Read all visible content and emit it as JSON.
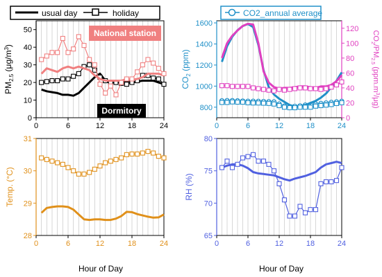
{
  "figure": {
    "shared_xlabel": "Hour of Day"
  },
  "colors": {
    "black": "#000000",
    "pink": "#f08080",
    "orange": "#e0901a",
    "blue": "#2090c8",
    "magenta": "#e040c0",
    "purple": "#5060e0",
    "grid": "#bdbdbd",
    "dormitory_box": "#000000",
    "national_box": "#f08080"
  },
  "chart_data": [
    {
      "type": "line",
      "panel": "pm25",
      "ylabel": "PM2.5 (μg/m3)",
      "ylim": [
        0,
        55
      ],
      "xlim": [
        0,
        24
      ],
      "xticks": [
        0,
        6,
        12,
        18,
        24
      ],
      "yticks": [
        0,
        10,
        20,
        30,
        40,
        50
      ],
      "grid": "vertical",
      "legend": {
        "position": "top",
        "entries": [
          "usual day",
          "holiday"
        ]
      },
      "annotations": [
        "National station",
        "Dormitory"
      ],
      "x": [
        1,
        2,
        3,
        4,
        5,
        6,
        7,
        8,
        9,
        10,
        11,
        12,
        13,
        14,
        15,
        16,
        17,
        18,
        19,
        20,
        21,
        22,
        23,
        24
      ],
      "series": [
        {
          "name": "usual day",
          "color": "#000000",
          "style": "thick-line",
          "values": [
            16,
            15,
            14.5,
            14,
            13,
            13,
            12.5,
            14,
            17,
            20,
            23,
            25,
            21,
            20,
            20,
            20,
            21,
            20,
            20.5,
            21,
            21,
            21,
            20,
            19
          ]
        },
        {
          "name": "holiday",
          "color": "#000000",
          "style": "line-open-square",
          "values": [
            20,
            20.5,
            21,
            21,
            22,
            22,
            23.5,
            25,
            29,
            30,
            27,
            23,
            21,
            20,
            20,
            19.5,
            19,
            20,
            21,
            24,
            24,
            22.5,
            22,
            19
          ]
        },
        {
          "name": "National station usual day",
          "color": "#f08080",
          "style": "thick-line",
          "values": [
            25,
            28,
            27,
            26,
            28,
            29,
            28,
            29,
            28,
            27,
            24,
            22,
            21,
            21,
            21,
            21,
            22,
            21.5,
            22,
            23,
            25,
            25,
            25,
            24
          ]
        },
        {
          "name": "National station holiday",
          "color": "#f08080",
          "style": "line-open-square",
          "values": [
            33,
            35,
            37,
            37,
            45,
            37,
            39,
            46,
            41,
            33,
            30,
            19,
            14,
            18,
            13,
            20,
            22,
            22,
            26,
            30,
            33,
            31,
            28,
            25
          ]
        }
      ]
    },
    {
      "type": "line",
      "panel": "co2",
      "ylabel": "CO2 (ppm)",
      "y2label": "CO2/PM2.5 (ppm.m3/μg)",
      "ylim": [
        700,
        1620
      ],
      "y2lim": [
        0,
        130
      ],
      "xlim": [
        0,
        24
      ],
      "xticks": [
        0,
        6,
        12,
        18,
        24
      ],
      "yticks": [
        800,
        1000,
        1200,
        1400,
        1600
      ],
      "y2ticks": [
        0,
        20,
        40,
        60,
        80,
        100,
        120
      ],
      "grid": "vertical",
      "legend": {
        "position": "top",
        "entries": [
          "CO2_annual average"
        ]
      },
      "x": [
        1,
        2,
        3,
        4,
        5,
        6,
        7,
        8,
        9,
        10,
        11,
        12,
        13,
        14,
        15,
        16,
        17,
        18,
        19,
        20,
        21,
        22,
        23,
        24
      ],
      "series": [
        {
          "name": "CO2_annual average",
          "color": "#2090c8",
          "axis": "left",
          "style": "line-open-circle",
          "values": [
            860,
            862,
            862,
            860,
            858,
            856,
            856,
            855,
            854,
            852,
            850,
            830,
            810,
            805,
            808,
            812,
            820,
            825,
            830,
            835,
            840,
            845,
            850,
            855
          ]
        },
        {
          "name": "CO2 usual day",
          "color": "#2090c8",
          "axis": "left",
          "style": "thick-line",
          "values": [
            1230,
            1380,
            1470,
            1530,
            1570,
            1590,
            1560,
            1390,
            1150,
            990,
            920,
            880,
            850,
            820,
            808,
            810,
            820,
            840,
            860,
            890,
            930,
            990,
            1050,
            1130
          ]
        },
        {
          "name": "CO2 holiday",
          "color": "#2090c8",
          "axis": "left",
          "style": "line-open-square",
          "values": [
            845,
            845,
            850,
            848,
            848,
            842,
            840,
            840,
            838,
            836,
            830,
            815,
            800,
            795,
            795,
            800,
            800,
            800,
            810,
            815,
            820,
            825,
            835,
            842
          ]
        },
        {
          "name": "CO2/PM2.5 usual day",
          "color": "#e040c0",
          "axis": "right",
          "style": "thick-line",
          "values": [
            80,
            100,
            110,
            117,
            123,
            126,
            125,
            100,
            62,
            47,
            41,
            39,
            40,
            40,
            41,
            42,
            42,
            41,
            40,
            42,
            42,
            44,
            49,
            57
          ]
        },
        {
          "name": "CO2/PM2.5 holiday",
          "color": "#e040c0",
          "axis": "right",
          "style": "line-open-square",
          "values": [
            43,
            43,
            42,
            42,
            42,
            42,
            40,
            39,
            38,
            37,
            36,
            38,
            37,
            38,
            39,
            40,
            40,
            39,
            39,
            38,
            39,
            41,
            44,
            48
          ]
        }
      ]
    },
    {
      "type": "line",
      "panel": "temp",
      "ylabel": "Temp. (°C)",
      "ylim": [
        28,
        31
      ],
      "xlim": [
        0,
        24
      ],
      "xticks": [
        0,
        6,
        12,
        18,
        24
      ],
      "yticks": [
        28,
        29,
        30,
        31
      ],
      "grid": "vertical",
      "x": [
        1,
        2,
        3,
        4,
        5,
        6,
        7,
        8,
        9,
        10,
        11,
        12,
        13,
        14,
        15,
        16,
        17,
        18,
        19,
        20,
        21,
        22,
        23,
        24
      ],
      "series": [
        {
          "name": "Temp usual day",
          "color": "#e0901a",
          "style": "thick-line",
          "values": [
            28.7,
            28.85,
            28.88,
            28.9,
            28.9,
            28.88,
            28.8,
            28.65,
            28.5,
            28.48,
            28.5,
            28.5,
            28.48,
            28.48,
            28.52,
            28.6,
            28.73,
            28.72,
            28.66,
            28.62,
            28.58,
            28.55,
            28.56,
            28.65
          ]
        },
        {
          "name": "Temp holiday",
          "color": "#e0901a",
          "style": "line-open-square",
          "values": [
            30.4,
            30.35,
            30.3,
            30.25,
            30.2,
            30.1,
            30.0,
            29.9,
            29.9,
            29.95,
            30.05,
            30.15,
            30.25,
            30.3,
            30.35,
            30.4,
            30.5,
            30.52,
            30.52,
            30.55,
            30.6,
            30.55,
            30.45,
            30.4
          ]
        }
      ]
    },
    {
      "type": "line",
      "panel": "rh",
      "ylabel": "RH (%)",
      "ylim": [
        65,
        80
      ],
      "xlim": [
        0,
        24
      ],
      "xticks": [
        0,
        6,
        12,
        18,
        24
      ],
      "yticks": [
        65,
        70,
        75,
        80
      ],
      "grid": "vertical",
      "x": [
        1,
        2,
        3,
        4,
        5,
        6,
        7,
        8,
        9,
        10,
        11,
        12,
        13,
        14,
        15,
        16,
        17,
        18,
        19,
        20,
        21,
        22,
        23,
        24
      ],
      "series": [
        {
          "name": "RH usual day",
          "color": "#5060e0",
          "style": "thick-line",
          "values": [
            75.5,
            75.8,
            76,
            76,
            75.8,
            75.4,
            74.8,
            74.6,
            74.5,
            74.4,
            74.3,
            74,
            73.7,
            73.5,
            73.8,
            74,
            74.2,
            74.5,
            74.8,
            75.5,
            76,
            76.2,
            76.4,
            76.2
          ]
        },
        {
          "name": "RH holiday",
          "color": "#5060e0",
          "style": "line-open-square",
          "values": [
            75.5,
            76.5,
            75.5,
            76,
            77,
            77.2,
            77.5,
            76.5,
            76.5,
            76,
            75,
            73,
            70.5,
            68,
            68,
            69.5,
            68.5,
            69,
            69,
            73,
            73.3,
            73.3,
            73.5,
            75.5
          ]
        }
      ]
    }
  ]
}
